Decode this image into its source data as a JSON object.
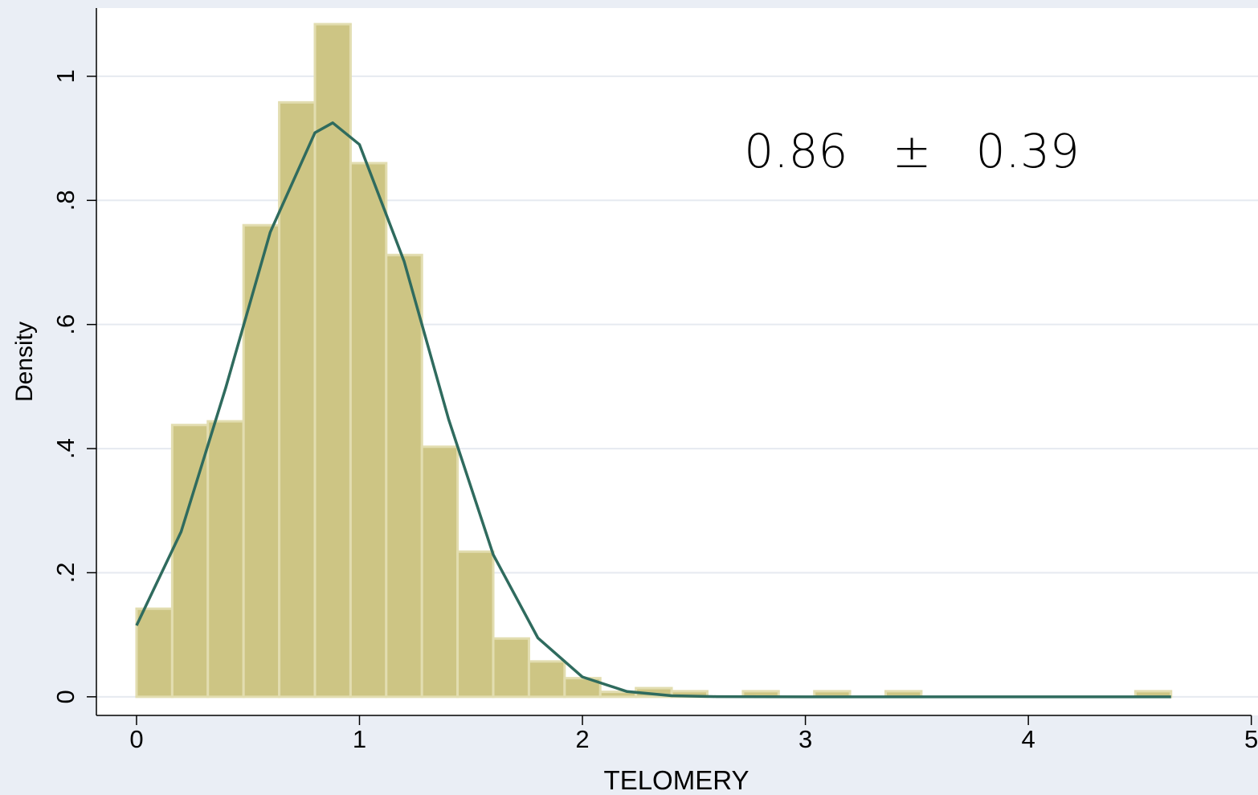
{
  "chart_data": {
    "type": "histogram",
    "x_label": "TELOMERY",
    "y_label": "Density",
    "annotation": "0.86   ±   0.39",
    "bins": [
      0,
      0.16,
      0.32,
      0.48,
      0.64,
      0.8,
      0.96,
      1.12,
      1.28,
      1.44,
      1.6,
      1.76,
      1.92,
      2.08,
      2.24,
      2.4,
      2.56,
      2.72,
      2.88,
      3.04,
      3.2,
      3.36,
      3.52,
      3.68,
      3.84,
      4.0,
      4.16,
      4.32,
      4.48,
      4.64
    ],
    "values": [
      0.142,
      0.438,
      0.444,
      0.76,
      0.958,
      1.084,
      0.86,
      0.712,
      0.403,
      0.234,
      0.094,
      0.057,
      0.03,
      0.008,
      0.014,
      0.009,
      0,
      0.009,
      0,
      0.009,
      0,
      0.009,
      0,
      0,
      0,
      0,
      0,
      0,
      0.009
    ],
    "color": "#cdc584",
    "curve": {
      "color": "#2f6b5e",
      "x": [
        0,
        0.2,
        0.4,
        0.6,
        0.8,
        0.88,
        1.0,
        1.2,
        1.4,
        1.6,
        1.8,
        2.0,
        2.2,
        2.4,
        2.6,
        3.0,
        4.64
      ],
      "y": [
        0.115,
        0.266,
        0.498,
        0.749,
        0.909,
        0.925,
        0.89,
        0.702,
        0.447,
        0.229,
        0.095,
        0.032,
        0.0085,
        0.0018,
        0.0003,
        0,
        0
      ]
    },
    "xlim": [
      -0.18,
      5.03
    ],
    "ylim": [
      -0.03,
      1.11
    ],
    "xticks": [
      0,
      1,
      2,
      3,
      4,
      5
    ],
    "yticks": [
      0,
      {
        "value": 0.2,
        "label": ".2"
      },
      {
        "value": 0.4,
        "label": ".4"
      },
      {
        "value": 0.6,
        "label": ".6"
      },
      {
        "value": 0.8,
        "label": ".8"
      },
      1
    ],
    "grid": true
  }
}
